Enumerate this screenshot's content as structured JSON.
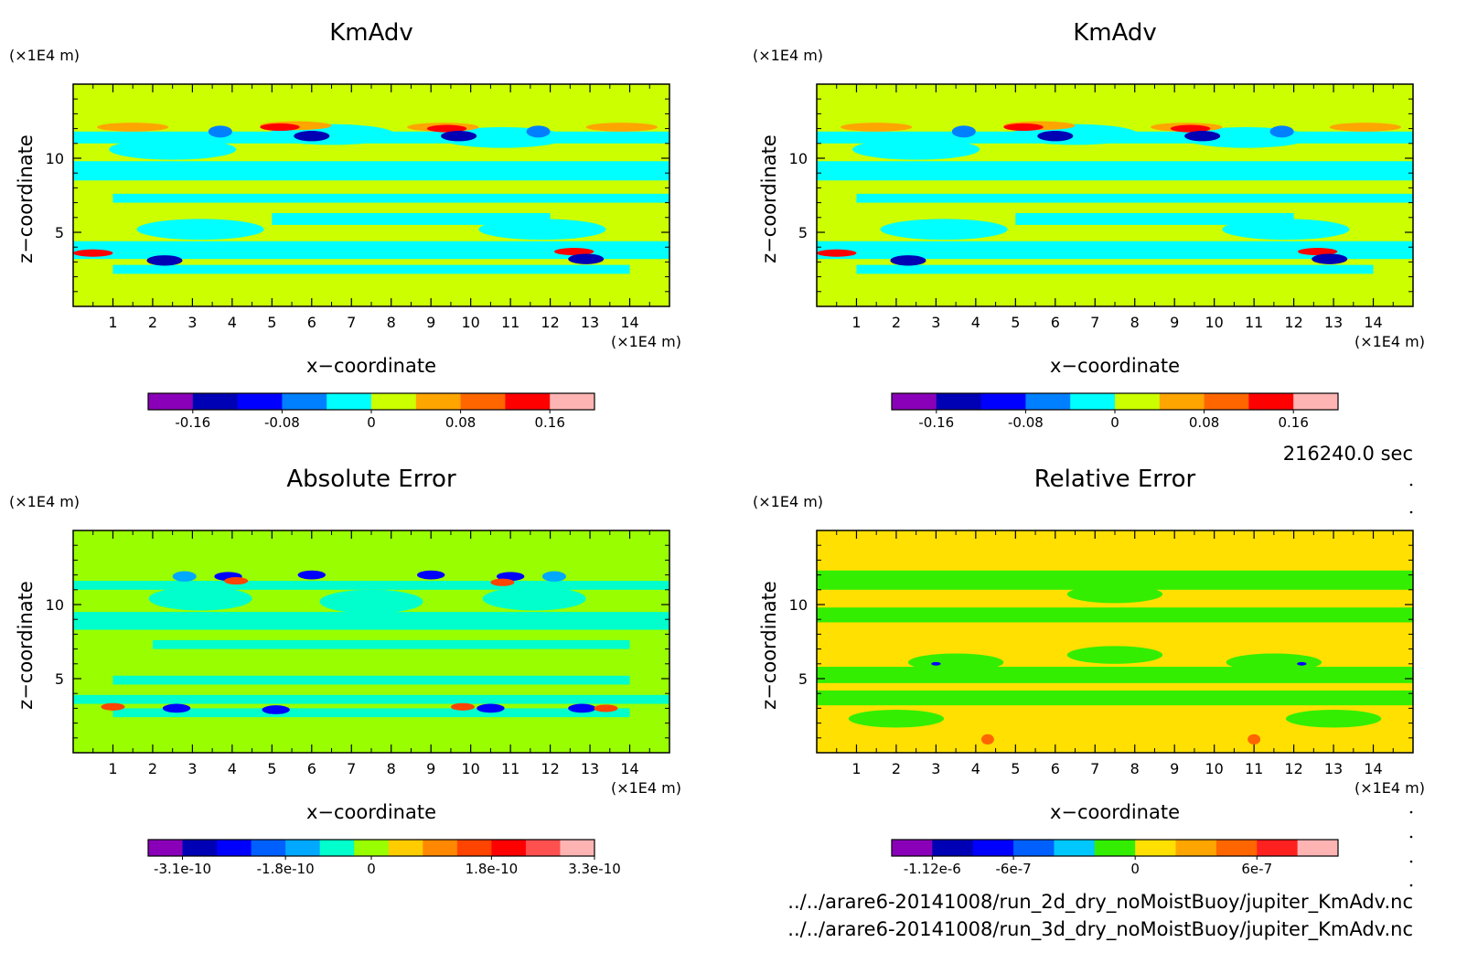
{
  "time_label": "216240.0 sec",
  "file_paths": [
    "../../arare6-20141008/run_2d_dry_noMoistBuoy/jupiter_KmAdv.nc",
    "../../arare6-20141008/run_3d_dry_noMoistBuoy/jupiter_KmAdv.nc"
  ],
  "chart_data": [
    {
      "type": "heatmap",
      "title": "KmAdv",
      "xlabel": "x−coordinate",
      "ylabel": "z−coordinate",
      "x_unit": "(×1E4 m)",
      "y_unit": "(×1E4 m)",
      "xlim": [
        0,
        15
      ],
      "ylim": [
        0,
        15
      ],
      "xticks": [
        1,
        2,
        3,
        4,
        5,
        6,
        7,
        8,
        9,
        10,
        11,
        12,
        13,
        14
      ],
      "yticks": [
        5,
        10
      ],
      "background": "#ccff00",
      "colorbar": {
        "colors": [
          "#8a00b8",
          "#0000b4",
          "#0000ff",
          "#0080ff",
          "#00ffff",
          "#ccff00",
          "#ffa500",
          "#ff6600",
          "#ff0000",
          "#ffb4b4"
        ],
        "labels": [
          "-0.16",
          "-0.08",
          "0",
          "0.08",
          "0.16"
        ],
        "label_index": [
          1,
          3,
          5,
          7,
          9
        ]
      }
    },
    {
      "type": "heatmap",
      "title": "KmAdv",
      "xlabel": "x−coordinate",
      "ylabel": "z−coordinate",
      "x_unit": "(×1E4 m)",
      "y_unit": "(×1E4 m)",
      "xlim": [
        0,
        15
      ],
      "ylim": [
        0,
        15
      ],
      "xticks": [
        1,
        2,
        3,
        4,
        5,
        6,
        7,
        8,
        9,
        10,
        11,
        12,
        13,
        14
      ],
      "yticks": [
        5,
        10
      ],
      "background": "#ccff00",
      "colorbar": {
        "colors": [
          "#8a00b8",
          "#0000b4",
          "#0000ff",
          "#0080ff",
          "#00ffff",
          "#ccff00",
          "#ffa500",
          "#ff6600",
          "#ff0000",
          "#ffb4b4"
        ],
        "labels": [
          "-0.16",
          "-0.08",
          "0",
          "0.08",
          "0.16"
        ],
        "label_index": [
          1,
          3,
          5,
          7,
          9
        ]
      }
    },
    {
      "type": "heatmap",
      "title": "Absolute Error",
      "xlabel": "x−coordinate",
      "ylabel": "z−coordinate",
      "x_unit": "(×1E4 m)",
      "y_unit": "(×1E4 m)",
      "xlim": [
        0,
        15
      ],
      "ylim": [
        0,
        15
      ],
      "xticks": [
        1,
        2,
        3,
        4,
        5,
        6,
        7,
        8,
        9,
        10,
        11,
        12,
        13,
        14
      ],
      "yticks": [
        5,
        10
      ],
      "background": "#99ff00",
      "colorbar": {
        "colors": [
          "#8a00b8",
          "#0000b4",
          "#0000ff",
          "#0060ff",
          "#00a8ff",
          "#00ffcc",
          "#99ff00",
          "#ffcc00",
          "#ff8800",
          "#ff4400",
          "#ff0000",
          "#ff5050",
          "#ffb4b4"
        ],
        "labels": [
          "-3.1e-10",
          "-1.8e-10",
          "0",
          "1.8e-10",
          "3.3e-10"
        ],
        "label_index": [
          1,
          4,
          6.5,
          10,
          13
        ]
      }
    },
    {
      "type": "heatmap",
      "title": "Relative Error",
      "xlabel": "x−coordinate",
      "ylabel": "z−coordinate",
      "x_unit": "(×1E4 m)",
      "y_unit": "(×1E4 m)",
      "xlim": [
        0,
        15
      ],
      "ylim": [
        0,
        15
      ],
      "xticks": [
        1,
        2,
        3,
        4,
        5,
        6,
        7,
        8,
        9,
        10,
        11,
        12,
        13,
        14
      ],
      "yticks": [
        5,
        10
      ],
      "background": "#ffe000",
      "colorbar": {
        "colors": [
          "#8a00b8",
          "#0000b4",
          "#0000ff",
          "#0060ff",
          "#00c8ff",
          "#33ee00",
          "#ffe000",
          "#ffa500",
          "#ff6600",
          "#ff2020",
          "#ffb4b4"
        ],
        "labels": [
          "-1.12e-6",
          "-6e-7",
          "0",
          "6e-7"
        ],
        "label_index": [
          1,
          3,
          6,
          9
        ]
      }
    }
  ]
}
